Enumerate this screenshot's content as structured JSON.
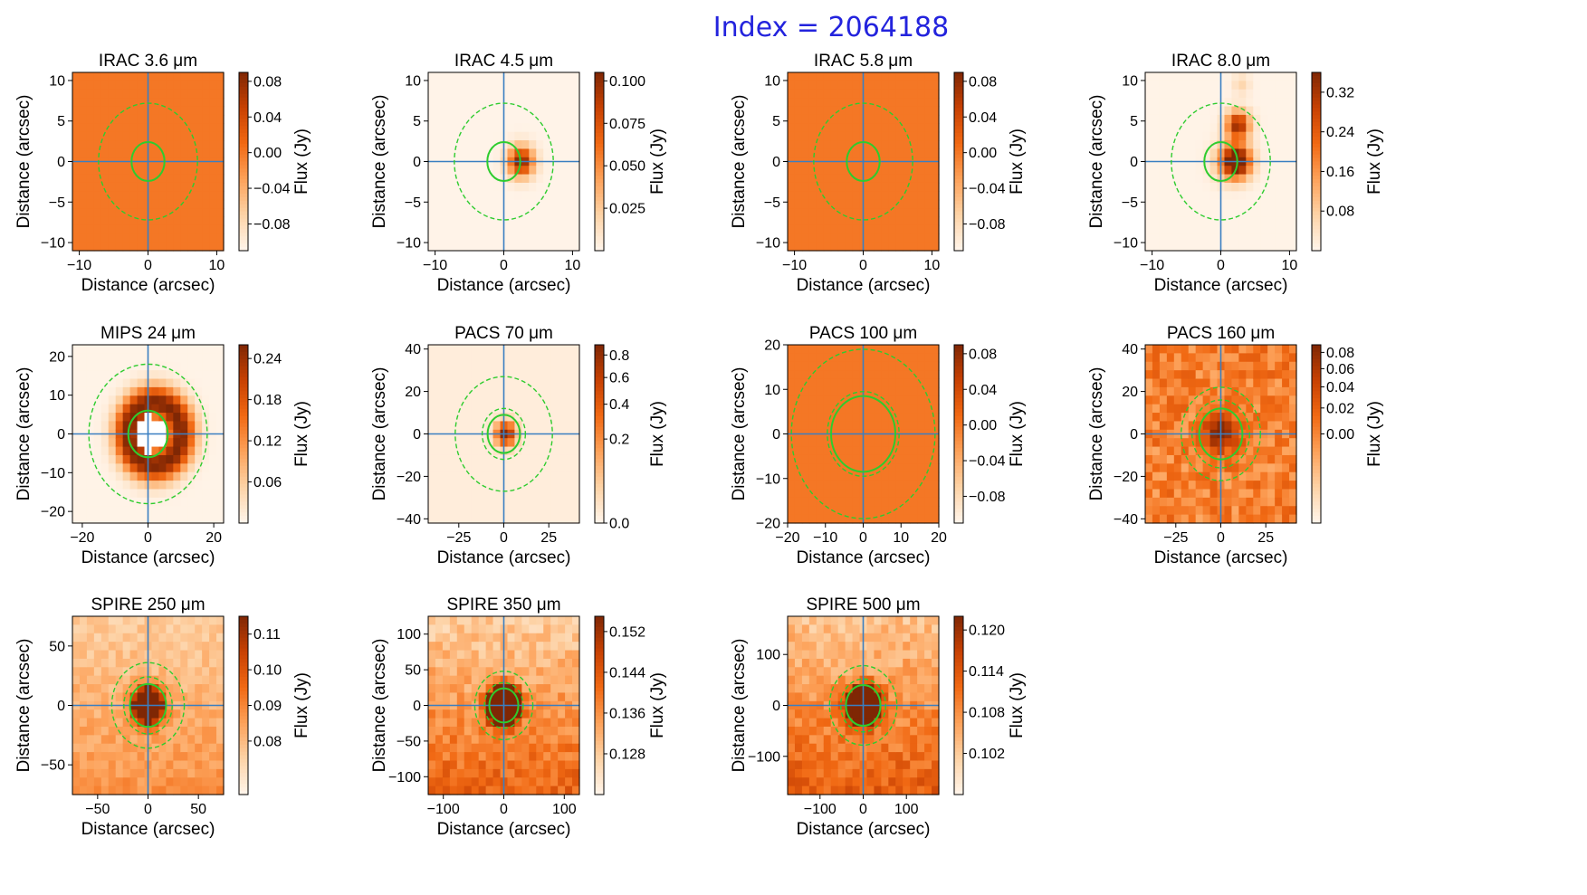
{
  "figure_title": "Index = 2064188",
  "colors": {
    "title": "#2323dd",
    "crosshair": "#3a7fc1",
    "aperture": "#2ecc2e",
    "cmap": [
      "#fff5eb",
      "#fdd3a7",
      "#fda25a",
      "#f16913",
      "#c84103",
      "#7f2704"
    ]
  },
  "chart_data": [
    {
      "type": "heatmap",
      "title": "IRAC 3.6 μm",
      "xlabel": "Distance (arcsec)",
      "ylabel": "Distance (arcsec)",
      "cbar_label": "Flux (Jy)",
      "xlim": [
        -11,
        11
      ],
      "ylim": [
        -11,
        11
      ],
      "xticks": [
        -10,
        0,
        10
      ],
      "yticks": [
        -10,
        -5,
        0,
        5,
        10
      ],
      "cbar_range": [
        -0.11,
        0.09
      ],
      "cbar_ticks": [
        0.08,
        0.04,
        0.0,
        -0.04,
        -0.08
      ],
      "cbar_tick_labels": [
        "0.08",
        "0.04",
        "0.00",
        "−0.04",
        "−0.08"
      ],
      "uniform": 0.0,
      "aperture_radius": 2.4,
      "annulus_radii": [
        7.2
      ],
      "sources": []
    },
    {
      "type": "heatmap",
      "title": "IRAC 4.5 μm",
      "xlabel": "Distance (arcsec)",
      "ylabel": "Distance (arcsec)",
      "cbar_label": "Flux (Jy)",
      "xlim": [
        -11,
        11
      ],
      "ylim": [
        -11,
        11
      ],
      "xticks": [
        -10,
        0,
        10
      ],
      "yticks": [
        -10,
        -5,
        0,
        5,
        10
      ],
      "cbar_range": [
        0.0,
        0.105
      ],
      "cbar_ticks": [
        0.1,
        0.075,
        0.05,
        0.025
      ],
      "cbar_tick_labels": [
        "0.100",
        "0.075",
        "0.050",
        "0.025"
      ],
      "background": 0.001,
      "aperture_radius": 2.4,
      "annulus_radii": [
        7.2
      ],
      "sources": [
        {
          "x": 2.5,
          "y": 0,
          "peak": 0.105,
          "sigma": 1.3
        }
      ]
    },
    {
      "type": "heatmap",
      "title": "IRAC 5.8 μm",
      "xlabel": "Distance (arcsec)",
      "ylabel": "Distance (arcsec)",
      "cbar_label": "Flux (Jy)",
      "xlim": [
        -11,
        11
      ],
      "ylim": [
        -11,
        11
      ],
      "xticks": [
        -10,
        0,
        10
      ],
      "yticks": [
        -10,
        -5,
        0,
        5,
        10
      ],
      "cbar_range": [
        -0.11,
        0.09
      ],
      "cbar_ticks": [
        0.08,
        0.04,
        0.0,
        -0.04,
        -0.08
      ],
      "cbar_tick_labels": [
        "0.08",
        "0.04",
        "0.00",
        "−0.04",
        "−0.08"
      ],
      "uniform": 0.0,
      "aperture_radius": 2.4,
      "annulus_radii": [
        7.2
      ],
      "sources": []
    },
    {
      "type": "heatmap",
      "title": "IRAC 8.0 μm",
      "xlabel": "Distance (arcsec)",
      "ylabel": "Distance (arcsec)",
      "cbar_label": "Flux (Jy)",
      "xlim": [
        -11,
        11
      ],
      "ylim": [
        -11,
        11
      ],
      "xticks": [
        -10,
        0,
        10
      ],
      "yticks": [
        -10,
        -5,
        0,
        5,
        10
      ],
      "cbar_range": [
        0.0,
        0.36
      ],
      "cbar_ticks": [
        0.32,
        0.24,
        0.16,
        0.08
      ],
      "cbar_tick_labels": [
        "0.32",
        "0.24",
        "0.16",
        "0.08"
      ],
      "background": 0.004,
      "aperture_radius": 2.4,
      "annulus_radii": [
        7.2
      ],
      "sources": [
        {
          "x": 2.5,
          "y": 0,
          "peak": 0.36,
          "sigma": 1.4
        },
        {
          "x": 1.2,
          "y": 0,
          "peak": 0.15,
          "sigma": 1.6
        },
        {
          "x": 2.5,
          "y": 4.5,
          "peak": 0.34,
          "sigma": 1.2
        },
        {
          "x": 3.0,
          "y": 9.5,
          "peak": 0.06,
          "sigma": 0.9
        }
      ]
    },
    {
      "type": "heatmap",
      "title": "MIPS 24 μm",
      "xlabel": "Distance (arcsec)",
      "ylabel": "Distance (arcsec)",
      "cbar_label": "Flux (Jy)",
      "xlim": [
        -23,
        23
      ],
      "ylim": [
        -23,
        23
      ],
      "xticks": [
        -20,
        0,
        20
      ],
      "yticks": [
        -20,
        -10,
        0,
        10,
        20
      ],
      "cbar_range": [
        0.0,
        0.26
      ],
      "cbar_ticks": [
        0.24,
        0.18,
        0.12,
        0.06
      ],
      "cbar_tick_labels": [
        "0.24",
        "0.18",
        "0.12",
        "0.06"
      ],
      "background": 0.003,
      "aperture_radius": 6.0,
      "annulus_radii": [
        18.0
      ],
      "ring": {
        "x": 2.0,
        "y": 0,
        "radius": 8.0,
        "width": 3.2,
        "peak": 0.26
      },
      "hole": {
        "x": 1.0,
        "y": 0,
        "radius": 4.5
      },
      "sources": []
    },
    {
      "type": "heatmap",
      "title": "PACS 70 μm",
      "xlabel": "Distance (arcsec)",
      "ylabel": "Distance (arcsec)",
      "cbar_label": "Flux (Jy)",
      "xlim": [
        -42,
        42
      ],
      "ylim": [
        -42,
        42
      ],
      "xticks": [
        -25,
        0,
        25
      ],
      "yticks": [
        -40,
        -20,
        0,
        20,
        40
      ],
      "cbar_range": [
        0.0,
        0.9
      ],
      "cbar_ticks": [
        0.8,
        0.6,
        0.4,
        0.2,
        0.0
      ],
      "cbar_tick_labels": [
        "0.8",
        "0.6",
        "0.4",
        "0.2",
        "0.0"
      ],
      "cbar_scale": "sqrt",
      "background": 0.002,
      "aperture_radius": 9.0,
      "annulus_radii": [
        12.0,
        27.0
      ],
      "sources": [
        {
          "x": 1.0,
          "y": 0,
          "peak": 0.9,
          "sigma": 3.0
        }
      ]
    },
    {
      "type": "heatmap",
      "title": "PACS 100 μm",
      "xlabel": "Distance (arcsec)",
      "ylabel": "Distance (arcsec)",
      "cbar_label": "Flux (Jy)",
      "xlim": [
        -20,
        20
      ],
      "ylim": [
        -20,
        20
      ],
      "xticks": [
        -20,
        -10,
        0,
        10,
        20
      ],
      "yticks": [
        -20,
        -10,
        0,
        10,
        20
      ],
      "cbar_range": [
        -0.11,
        0.09
      ],
      "cbar_ticks": [
        0.08,
        0.04,
        0.0,
        -0.04,
        -0.08
      ],
      "cbar_tick_labels": [
        "0.08",
        "0.04",
        "0.00",
        "−0.04",
        "−0.08"
      ],
      "uniform": 0.0,
      "aperture_radius": 8.5,
      "annulus_radii": [
        9.5,
        19.0
      ],
      "sources": []
    },
    {
      "type": "heatmap",
      "title": "PACS 160 μm",
      "xlabel": "Distance (arcsec)",
      "ylabel": "Distance (arcsec)",
      "cbar_label": "Flux (Jy)",
      "xlim": [
        -42,
        42
      ],
      "ylim": [
        -42,
        42
      ],
      "xticks": [
        -25,
        0,
        25
      ],
      "yticks": [
        -40,
        -20,
        0,
        20,
        40
      ],
      "cbar_range": [
        -0.03,
        0.09
      ],
      "cbar_ticks": [
        0.08,
        0.06,
        0.04,
        0.02,
        0.0
      ],
      "cbar_tick_labels": [
        "0.08",
        "0.06",
        "0.04",
        "0.02",
        "0.00"
      ],
      "cbar_scale": "sqrt",
      "background": 0.004,
      "noise": 0.018,
      "aperture_radius": 12.0,
      "annulus_radii": [
        16.0,
        22.0
      ],
      "sources": [
        {
          "x": 0,
          "y": 0,
          "peak": 0.085,
          "sigma": 5.5
        }
      ]
    },
    {
      "type": "heatmap",
      "title": "SPIRE 250 μm",
      "xlabel": "Distance (arcsec)",
      "ylabel": "Distance (arcsec)",
      "cbar_label": "Flux (Jy)",
      "xlim": [
        -75,
        75
      ],
      "ylim": [
        -75,
        75
      ],
      "xticks": [
        -50,
        0,
        50
      ],
      "yticks": [
        -50,
        0,
        50
      ],
      "cbar_range": [
        0.065,
        0.115
      ],
      "cbar_ticks": [
        0.11,
        0.1,
        0.09,
        0.08
      ],
      "cbar_tick_labels": [
        "0.11",
        "0.10",
        "0.09",
        "0.08"
      ],
      "background": 0.082,
      "gradient": [
        0.0,
        -8e-05
      ],
      "noise": 0.004,
      "aperture_radius": 18.0,
      "annulus_radii": [
        24.0,
        36.0
      ],
      "sources": [
        {
          "x": 0,
          "y": 0,
          "peak": 0.115,
          "sigma": 9.0
        }
      ]
    },
    {
      "type": "heatmap",
      "title": "SPIRE 350 μm",
      "xlabel": "Distance (arcsec)",
      "ylabel": "Distance (arcsec)",
      "cbar_label": "Flux (Jy)",
      "xlim": [
        -125,
        125
      ],
      "ylim": [
        -125,
        125
      ],
      "xticks": [
        -100,
        0,
        100
      ],
      "yticks": [
        -100,
        -50,
        0,
        50,
        100
      ],
      "cbar_range": [
        0.12,
        0.155
      ],
      "cbar_ticks": [
        0.152,
        0.144,
        0.136,
        0.128
      ],
      "cbar_tick_labels": [
        "0.152",
        "0.144",
        "0.136",
        "0.128"
      ],
      "background": 0.135,
      "gradient": [
        0.0,
        -6e-05
      ],
      "noise": 0.004,
      "aperture_radius": 24.0,
      "annulus_radii": [
        32.0,
        48.0
      ],
      "sources": [
        {
          "x": 0,
          "y": 0,
          "peak": 0.155,
          "sigma": 14.0
        }
      ]
    },
    {
      "type": "heatmap",
      "title": "SPIRE 500 μm",
      "xlabel": "Distance (arcsec)",
      "ylabel": "Distance (arcsec)",
      "cbar_label": "Flux (Jy)",
      "xlim": [
        -175,
        175
      ],
      "ylim": [
        -175,
        175
      ],
      "xticks": [
        -100,
        0,
        100
      ],
      "yticks": [
        -100,
        0,
        100
      ],
      "cbar_range": [
        0.096,
        0.122
      ],
      "cbar_ticks": [
        0.12,
        0.114,
        0.108,
        0.102
      ],
      "cbar_tick_labels": [
        "0.120",
        "0.114",
        "0.108",
        "0.102"
      ],
      "background": 0.108,
      "gradient": [
        0.0,
        -3e-05
      ],
      "noise": 0.003,
      "aperture_radius": 40.0,
      "annulus_radii": [
        52.0,
        78.0
      ],
      "sources": [
        {
          "x": 0,
          "y": 0,
          "peak": 0.121,
          "sigma": 20.0
        }
      ]
    }
  ]
}
